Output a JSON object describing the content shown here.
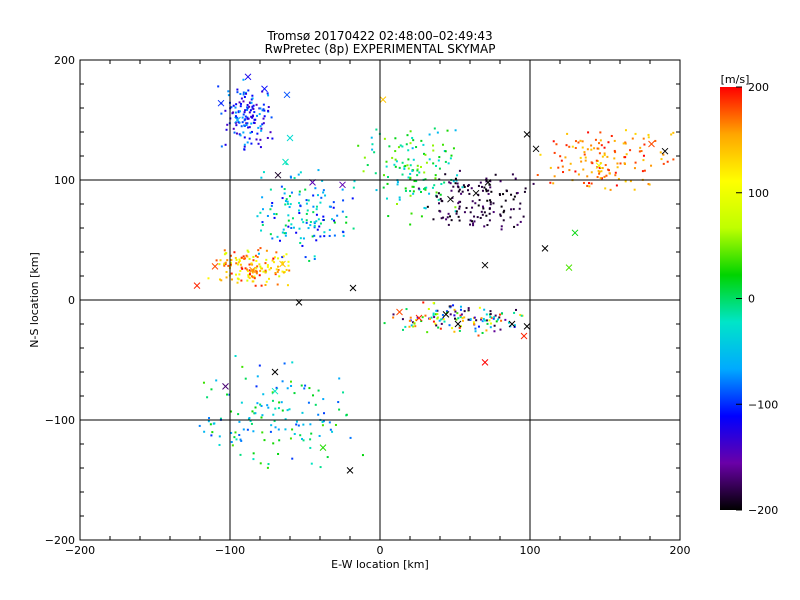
{
  "chart_data": {
    "type": "scatter",
    "title": "Tromsø 20170422 02:48:00–02:49:43",
    "subtitle": "RwPretec (8p) EXPERIMENTAL SKYMAP",
    "xlabel": "E-W location [km]",
    "ylabel": "N-S location [km]",
    "xlim": [
      -200,
      200
    ],
    "ylim": [
      -200,
      200
    ],
    "xticks": [
      "−200",
      "−100",
      "0",
      "100",
      "200"
    ],
    "yticks": [
      "−200",
      "−100",
      "0",
      "100",
      "200"
    ],
    "grid": true,
    "colorbar": {
      "label": "[m/s]",
      "min": -200,
      "max": 200,
      "ticks": [
        "200",
        "100",
        "0",
        "−100",
        "−200"
      ],
      "colormap": [
        "#000000",
        "#6a00a8",
        "#0000ff",
        "#00aaff",
        "#00e5c8",
        "#00d400",
        "#bfff00",
        "#ffff00",
        "#ffa500",
        "#ff0000"
      ]
    },
    "marker_types": [
      "dot",
      "cross"
    ],
    "clusters": [
      {
        "region": "north-west arc",
        "x": [
          -110,
          -70
        ],
        "y": [
          120,
          185
        ],
        "v_range": [
          -150,
          -60
        ]
      },
      {
        "region": "central-west mass",
        "x": [
          -85,
          -15
        ],
        "y": [
          30,
          115
        ],
        "v_range": [
          -120,
          20
        ]
      },
      {
        "region": "west low",
        "x": [
          -115,
          -55
        ],
        "y": [
          10,
          45
        ],
        "v_range": [
          80,
          200
        ]
      },
      {
        "region": "north-central",
        "x": [
          -20,
          60
        ],
        "y": [
          60,
          150
        ],
        "v_range": [
          -60,
          60
        ]
      },
      {
        "region": "north-east",
        "x": [
          20,
          110
        ],
        "y": [
          55,
          110
        ],
        "v_range": [
          -200,
          -170
        ]
      },
      {
        "region": "east band",
        "x": [
          100,
          200
        ],
        "y": [
          90,
          145
        ],
        "v_range": [
          130,
          200
        ]
      },
      {
        "region": "central trail",
        "x": [
          0,
          100
        ],
        "y": [
          -30,
          0
        ],
        "v_range": [
          -200,
          200
        ]
      },
      {
        "region": "south sparse",
        "x": [
          -130,
          -10
        ],
        "y": [
          -150,
          -40
        ],
        "v_range": [
          -100,
          40
        ]
      }
    ],
    "crosses": [
      {
        "x": -88,
        "y": 186,
        "v": -120
      },
      {
        "x": -77,
        "y": 176,
        "v": -110
      },
      {
        "x": -62,
        "y": 171,
        "v": -90
      },
      {
        "x": -106,
        "y": 164,
        "v": -100
      },
      {
        "x": -95,
        "y": 150,
        "v": -60
      },
      {
        "x": -60,
        "y": 135,
        "v": -30
      },
      {
        "x": 2,
        "y": 167,
        "v": 140
      },
      {
        "x": -68,
        "y": 104,
        "v": -190
      },
      {
        "x": -45,
        "y": 98,
        "v": -150
      },
      {
        "x": -25,
        "y": 96,
        "v": -150
      },
      {
        "x": -65,
        "y": 30,
        "v": 140
      },
      {
        "x": -85,
        "y": 25,
        "v": 160
      },
      {
        "x": -110,
        "y": 28,
        "v": 180
      },
      {
        "x": -122,
        "y": 12,
        "v": 190
      },
      {
        "x": -54,
        "y": -2,
        "v": -200
      },
      {
        "x": -18,
        "y": 10,
        "v": -200
      },
      {
        "x": 13,
        "y": -10,
        "v": 180
      },
      {
        "x": 26,
        "y": -15,
        "v": 190
      },
      {
        "x": 44,
        "y": -12,
        "v": -200
      },
      {
        "x": 52,
        "y": -20,
        "v": -200
      },
      {
        "x": 88,
        "y": -20,
        "v": -200
      },
      {
        "x": 98,
        "y": -22,
        "v": -200
      },
      {
        "x": 96,
        "y": -30,
        "v": 190
      },
      {
        "x": 70,
        "y": -52,
        "v": 200
      },
      {
        "x": 64,
        "y": 89,
        "v": -200
      },
      {
        "x": 47,
        "y": 84,
        "v": -200
      },
      {
        "x": 72,
        "y": 98,
        "v": -200
      },
      {
        "x": 104,
        "y": 126,
        "v": -200
      },
      {
        "x": 98,
        "y": 138,
        "v": -200
      },
      {
        "x": 110,
        "y": 43,
        "v": -200
      },
      {
        "x": 146,
        "y": 112,
        "v": 100
      },
      {
        "x": 190,
        "y": 124,
        "v": -200
      },
      {
        "x": 181,
        "y": 130,
        "v": 180
      },
      {
        "x": 70,
        "y": 29,
        "v": -200
      },
      {
        "x": 130,
        "y": 56,
        "v": 20
      },
      {
        "x": 126,
        "y": 27,
        "v": 40
      },
      {
        "x": -103,
        "y": -72,
        "v": -170
      },
      {
        "x": -70,
        "y": -60,
        "v": -200
      },
      {
        "x": -70,
        "y": -76,
        "v": -20
      },
      {
        "x": -38,
        "y": -123,
        "v": 30
      },
      {
        "x": -20,
        "y": -142,
        "v": -200
      },
      {
        "x": -63,
        "y": 115,
        "v": -20
      }
    ]
  }
}
